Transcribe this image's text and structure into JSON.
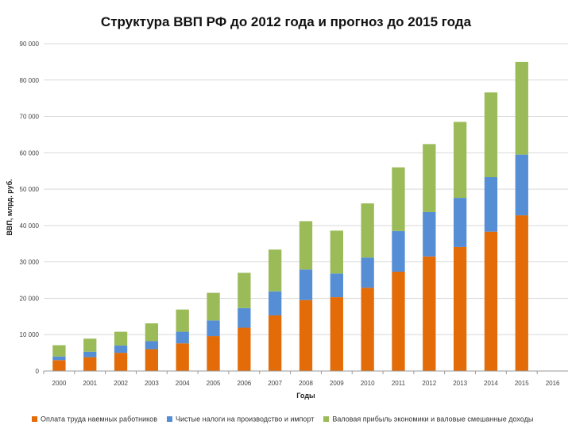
{
  "chart_data": {
    "type": "bar",
    "stacked": true,
    "title": "Структура ВВП РФ до 2012 года и прогноз до 2015 года",
    "xlabel": "Годы",
    "ylabel": "ВВП, млрд. руб.",
    "ylim": [
      0,
      90000
    ],
    "yticks": [
      "0",
      "10 000",
      "20 000",
      "30 000",
      "40 000",
      "50 000",
      "60 000",
      "70 000",
      "80 000",
      "90 000"
    ],
    "grid": true,
    "legend_position": "bottom",
    "categories": [
      "2000",
      "2001",
      "2002",
      "2003",
      "2004",
      "2005",
      "2006",
      "2007",
      "2008",
      "2009",
      "2010",
      "2011",
      "2012",
      "2013",
      "2014",
      "2015",
      "2016"
    ],
    "series": [
      {
        "name": "Оплата труда наемных работников",
        "color": "#e36c09",
        "values": [
          3000,
          3800,
          5000,
          6000,
          7600,
          9600,
          11900,
          15300,
          19500,
          20300,
          22900,
          27300,
          31500,
          34100,
          38300,
          42800,
          0
        ]
      },
      {
        "name": "Чистые налоги на производство и импорт",
        "color": "#558ed5",
        "values": [
          1000,
          1500,
          2000,
          2200,
          3200,
          4300,
          5400,
          6600,
          8400,
          6500,
          8300,
          11200,
          12200,
          13500,
          15000,
          16700,
          0
        ]
      },
      {
        "name": "Валовая прибыль экономики и валовые смешанные доходы",
        "color": "#9bbb59",
        "values": [
          3100,
          3600,
          3800,
          4900,
          6100,
          7600,
          9700,
          11500,
          13300,
          11800,
          14900,
          17500,
          18700,
          20900,
          23300,
          25500,
          0
        ]
      }
    ]
  }
}
